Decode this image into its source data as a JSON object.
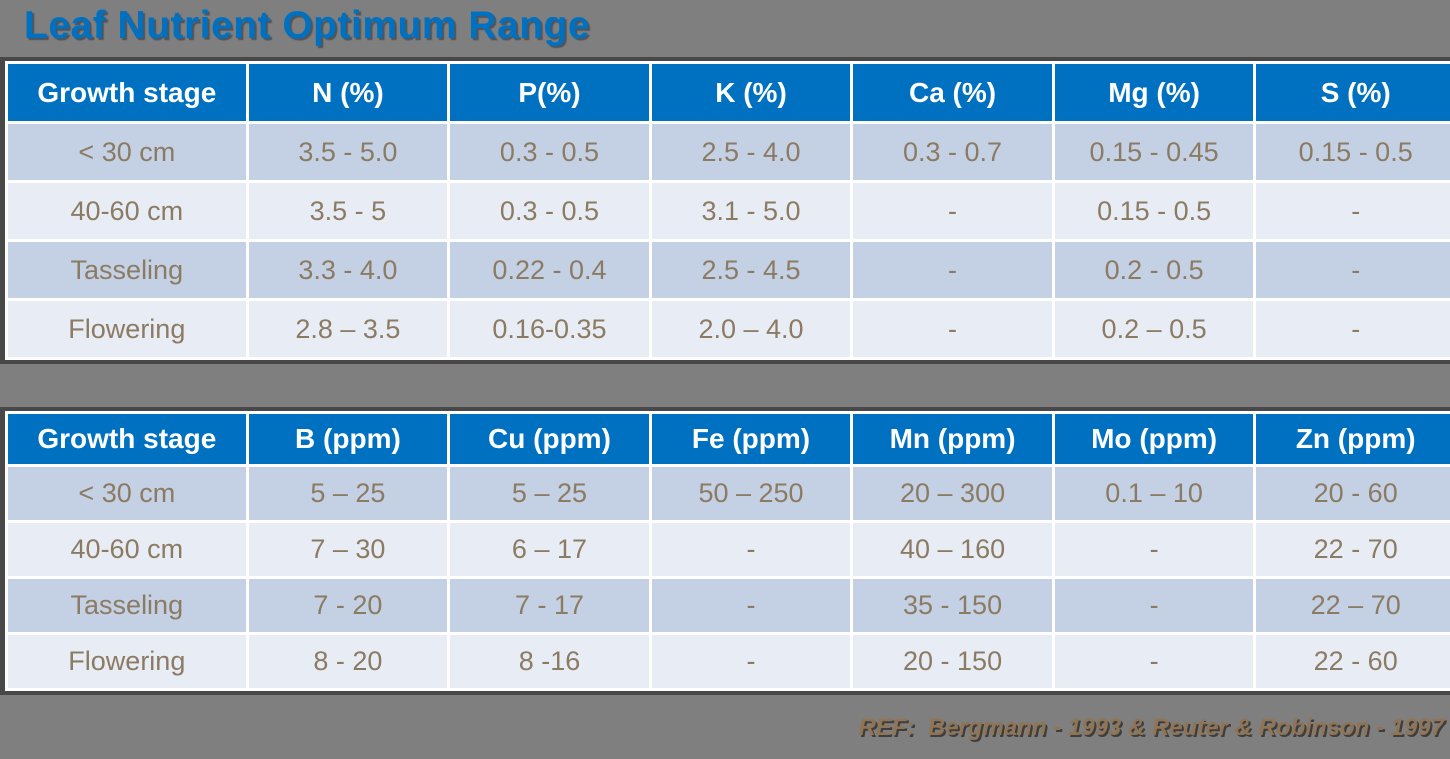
{
  "title": "Leaf Nutrient Optimum Range",
  "reference": "REF:  Bergmann - 1993 & Reuter & Robinson - 1997",
  "colors": {
    "background": "#7F7F7F",
    "table_outline": "#484848",
    "header_bg": "#0070C0",
    "header_text": "#FFFFFF",
    "row_dark_bg": "#C4D0E4",
    "row_light_bg": "#E8ECF5",
    "cell_text": "#8C7B63",
    "title_text": "#0070C0",
    "reference_text": "#8F7455"
  },
  "tables": [
    {
      "name": "macro-nutrients",
      "headers": [
        "Growth stage",
        "N (%)",
        "P(%)",
        "K (%)",
        "Ca (%)",
        "Mg (%)",
        "S (%)"
      ],
      "rows": [
        [
          "< 30 cm",
          "3.5 - 5.0",
          "0.3 - 0.5",
          "2.5 - 4.0",
          "0.3 - 0.7",
          "0.15 - 0.45",
          "0.15 - 0.5"
        ],
        [
          "40-60 cm",
          "3.5 - 5",
          "0.3 - 0.5",
          "3.1 - 5.0",
          "-",
          "0.15 - 0.5",
          "-"
        ],
        [
          "Tasseling",
          "3.3 - 4.0",
          "0.22 - 0.4",
          "2.5 - 4.5",
          "-",
          "0.2 - 0.5",
          "-"
        ],
        [
          "Flowering",
          "2.8 – 3.5",
          "0.16-0.35",
          "2.0 – 4.0",
          "-",
          "0.2 – 0.5",
          "-"
        ]
      ]
    },
    {
      "name": "micro-nutrients",
      "headers": [
        "Growth stage",
        "B (ppm)",
        "Cu (ppm)",
        "Fe (ppm)",
        "Mn (ppm)",
        "Mo (ppm)",
        "Zn (ppm)"
      ],
      "rows": [
        [
          "< 30 cm",
          "5 – 25",
          "5 – 25",
          "50 – 250",
          "20 – 300",
          "0.1 – 10",
          "20 - 60"
        ],
        [
          "40-60 cm",
          "7 – 30",
          "6 – 17",
          "-",
          "40 – 160",
          "-",
          "22 - 70"
        ],
        [
          "Tasseling",
          "7 - 20",
          "7 - 17",
          "-",
          "35 - 150",
          "-",
          "22 – 70"
        ],
        [
          "Flowering",
          "8 - 20",
          "8 -16",
          "-",
          "20 - 150",
          "-",
          "22 - 60"
        ]
      ]
    }
  ]
}
